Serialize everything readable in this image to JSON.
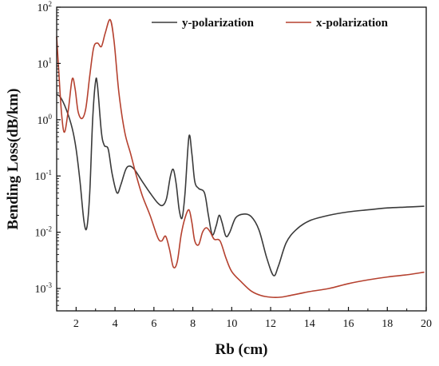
{
  "chart_data": {
    "type": "line",
    "xlabel": "Rb (cm)",
    "ylabel": "Bending Loss(dB/km)",
    "xlim": [
      1,
      20
    ],
    "ylim": [
      0.0004,
      100
    ],
    "yscale": "log",
    "grid": false,
    "legend_position": "top-right",
    "x_ticks": [
      {
        "value": 2,
        "label": "2"
      },
      {
        "value": 4,
        "label": "4"
      },
      {
        "value": 6,
        "label": "6"
      },
      {
        "value": 8,
        "label": "8"
      },
      {
        "value": 10,
        "label": "10"
      },
      {
        "value": 12,
        "label": "12"
      },
      {
        "value": 14,
        "label": "14"
      },
      {
        "value": 16,
        "label": "16"
      },
      {
        "value": 18,
        "label": "18"
      },
      {
        "value": 20,
        "label": "20"
      }
    ],
    "y_ticks": [
      {
        "value": 0.001,
        "base": "10",
        "exp": "-3"
      },
      {
        "value": 0.01,
        "base": "10",
        "exp": "-2"
      },
      {
        "value": 0.1,
        "base": "10",
        "exp": "-1"
      },
      {
        "value": 1,
        "base": "10",
        "exp": "0"
      },
      {
        "value": 10,
        "base": "10",
        "exp": "1"
      },
      {
        "value": 100,
        "base": "10",
        "exp": "2"
      }
    ],
    "series": [
      {
        "name": "y-polarization",
        "color": "#3a3a3a",
        "points": [
          [
            1.0,
            2.8
          ],
          [
            1.2,
            2.5
          ],
          [
            1.5,
            1.5
          ],
          [
            1.8,
            0.7
          ],
          [
            2.0,
            0.3
          ],
          [
            2.2,
            0.08
          ],
          [
            2.4,
            0.016
          ],
          [
            2.55,
            0.012
          ],
          [
            2.7,
            0.05
          ],
          [
            2.85,
            1.0
          ],
          [
            3.0,
            4.8
          ],
          [
            3.1,
            4.0
          ],
          [
            3.3,
            0.6
          ],
          [
            3.45,
            0.35
          ],
          [
            3.65,
            0.3
          ],
          [
            3.85,
            0.11
          ],
          [
            4.1,
            0.05
          ],
          [
            4.3,
            0.07
          ],
          [
            4.55,
            0.13
          ],
          [
            4.75,
            0.15
          ],
          [
            5.0,
            0.13
          ],
          [
            5.4,
            0.08
          ],
          [
            5.8,
            0.05
          ],
          [
            6.2,
            0.033
          ],
          [
            6.45,
            0.03
          ],
          [
            6.65,
            0.04
          ],
          [
            6.85,
            0.1
          ],
          [
            7.0,
            0.13
          ],
          [
            7.15,
            0.07
          ],
          [
            7.3,
            0.025
          ],
          [
            7.45,
            0.018
          ],
          [
            7.6,
            0.05
          ],
          [
            7.8,
            0.5
          ],
          [
            7.95,
            0.25
          ],
          [
            8.1,
            0.08
          ],
          [
            8.3,
            0.06
          ],
          [
            8.6,
            0.05
          ],
          [
            8.8,
            0.02
          ],
          [
            9.0,
            0.009
          ],
          [
            9.2,
            0.013
          ],
          [
            9.35,
            0.02
          ],
          [
            9.5,
            0.015
          ],
          [
            9.7,
            0.0085
          ],
          [
            9.9,
            0.01
          ],
          [
            10.2,
            0.018
          ],
          [
            10.6,
            0.021
          ],
          [
            11.0,
            0.019
          ],
          [
            11.4,
            0.011
          ],
          [
            11.8,
            0.0035
          ],
          [
            12.15,
            0.0017
          ],
          [
            12.4,
            0.0025
          ],
          [
            12.8,
            0.0065
          ],
          [
            13.3,
            0.011
          ],
          [
            14.0,
            0.016
          ],
          [
            15.0,
            0.02
          ],
          [
            16.0,
            0.023
          ],
          [
            17.0,
            0.025
          ],
          [
            18.0,
            0.027
          ],
          [
            19.0,
            0.028
          ],
          [
            19.9,
            0.029
          ]
        ]
      },
      {
        "name": "x-polarization",
        "color": "#b5412f",
        "points": [
          [
            1.0,
            30
          ],
          [
            1.1,
            8
          ],
          [
            1.25,
            1.3
          ],
          [
            1.4,
            0.6
          ],
          [
            1.6,
            1.5
          ],
          [
            1.8,
            5.3
          ],
          [
            1.95,
            3.5
          ],
          [
            2.1,
            1.4
          ],
          [
            2.3,
            1.05
          ],
          [
            2.5,
            1.6
          ],
          [
            2.7,
            6.0
          ],
          [
            2.9,
            19
          ],
          [
            3.1,
            23
          ],
          [
            3.3,
            20
          ],
          [
            3.5,
            35
          ],
          [
            3.75,
            60
          ],
          [
            3.95,
            25
          ],
          [
            4.2,
            3.0
          ],
          [
            4.5,
            0.6
          ],
          [
            4.8,
            0.25
          ],
          [
            5.1,
            0.1
          ],
          [
            5.4,
            0.045
          ],
          [
            5.8,
            0.02
          ],
          [
            6.2,
            0.008
          ],
          [
            6.4,
            0.007
          ],
          [
            6.6,
            0.0085
          ],
          [
            6.8,
            0.005
          ],
          [
            7.0,
            0.0024
          ],
          [
            7.2,
            0.003
          ],
          [
            7.4,
            0.009
          ],
          [
            7.6,
            0.018
          ],
          [
            7.8,
            0.025
          ],
          [
            7.95,
            0.015
          ],
          [
            8.1,
            0.007
          ],
          [
            8.3,
            0.006
          ],
          [
            8.5,
            0.01
          ],
          [
            8.7,
            0.012
          ],
          [
            8.9,
            0.01
          ],
          [
            9.1,
            0.0075
          ],
          [
            9.4,
            0.007
          ],
          [
            9.7,
            0.0035
          ],
          [
            10.0,
            0.002
          ],
          [
            10.5,
            0.0013
          ],
          [
            11.0,
            0.0009
          ],
          [
            11.5,
            0.00075
          ],
          [
            12.0,
            0.0007
          ],
          [
            12.5,
            0.0007
          ],
          [
            13.0,
            0.00075
          ],
          [
            14.0,
            0.00088
          ],
          [
            15.0,
            0.001
          ],
          [
            16.0,
            0.00122
          ],
          [
            17.0,
            0.00142
          ],
          [
            18.0,
            0.0016
          ],
          [
            19.0,
            0.00175
          ],
          [
            19.9,
            0.00195
          ]
        ]
      }
    ]
  }
}
